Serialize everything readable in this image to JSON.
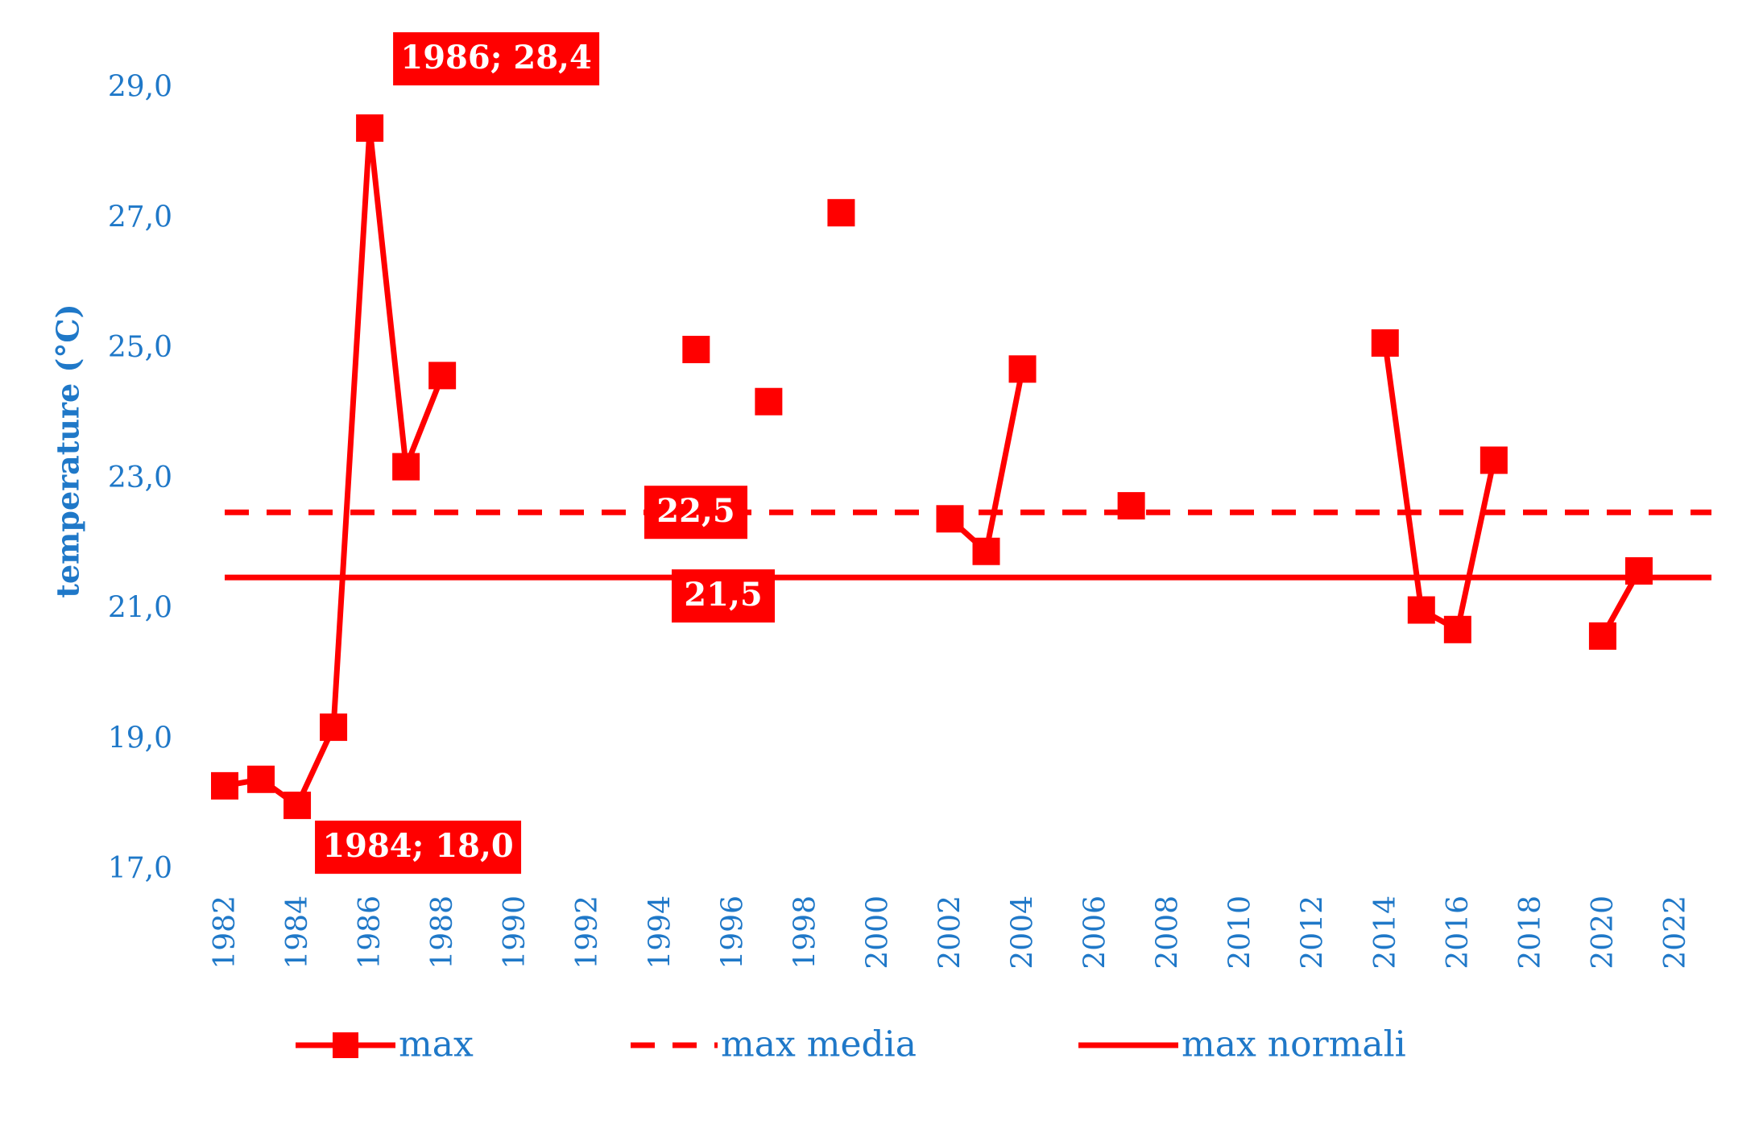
{
  "chart_data": {
    "type": "line",
    "title": "",
    "xlabel": "",
    "ylabel": "temperature (°C)",
    "xlim": [
      1982,
      2023
    ],
    "ylim": [
      17.0,
      30.2
    ],
    "x_ticks": [
      "1982",
      "1984",
      "1986",
      "1988",
      "1990",
      "1992",
      "1994",
      "1996",
      "1998",
      "2000",
      "2002",
      "2004",
      "2006",
      "2008",
      "2010",
      "2012",
      "2014",
      "2016",
      "2018",
      "2020",
      "2022"
    ],
    "y_ticks": [
      "17,0",
      "19,0",
      "21,0",
      "23,0",
      "25,0",
      "27,0",
      "29,0"
    ],
    "grid": false,
    "legend_position": "bottom",
    "series": [
      {
        "name": "max",
        "style": "line-square-markers",
        "color": "#ff0000",
        "points": [
          {
            "x": 1982,
            "y": 18.3
          },
          {
            "x": 1983,
            "y": 18.4
          },
          {
            "x": 1984,
            "y": 18.0
          },
          {
            "x": 1985,
            "y": 19.2
          },
          {
            "x": 1986,
            "y": 28.4
          },
          {
            "x": 1987,
            "y": 23.2
          },
          {
            "x": 1988,
            "y": 24.6
          },
          {
            "x": 1995,
            "y": 25.0
          },
          {
            "x": 1997,
            "y": 24.2
          },
          {
            "x": 1999,
            "y": 27.1
          },
          {
            "x": 2002,
            "y": 22.4
          },
          {
            "x": 2003,
            "y": 21.9
          },
          {
            "x": 2004,
            "y": 24.7
          },
          {
            "x": 2007,
            "y": 22.6
          },
          {
            "x": 2014,
            "y": 25.1
          },
          {
            "x": 2015,
            "y": 21.0
          },
          {
            "x": 2016,
            "y": 20.7
          },
          {
            "x": 2017,
            "y": 23.3
          },
          {
            "x": 2020,
            "y": 20.6
          },
          {
            "x": 2021,
            "y": 21.6
          }
        ],
        "segments": [
          [
            1982,
            1983,
            1984,
            1985,
            1986,
            1987,
            1988
          ],
          [
            1995
          ],
          [
            1997
          ],
          [
            1999
          ],
          [
            2002,
            2003,
            2004
          ],
          [
            2007
          ],
          [
            2014,
            2015,
            2016,
            2017
          ],
          [
            2020,
            2021
          ]
        ]
      },
      {
        "name": "max media",
        "style": "dashed",
        "color": "#ff0000",
        "value": 22.5,
        "x_range": [
          1982,
          2023
        ]
      },
      {
        "name": "max normali",
        "style": "solid",
        "color": "#ff0000",
        "value": 21.5,
        "x_range": [
          1982,
          2023
        ]
      }
    ],
    "annotations": [
      {
        "text": "1986; 28,4",
        "x": 1986,
        "y": 28.4
      },
      {
        "text": "1984; 18,0",
        "x": 1984,
        "y": 18.0
      },
      {
        "text": "22,5",
        "series": "max media"
      },
      {
        "text": "21,5",
        "series": "max normali"
      }
    ]
  },
  "colors": {
    "series": "#ff0000",
    "axis_text": "#1f78c8",
    "label_bg": "#ff0000",
    "label_text": "#ffffff"
  }
}
